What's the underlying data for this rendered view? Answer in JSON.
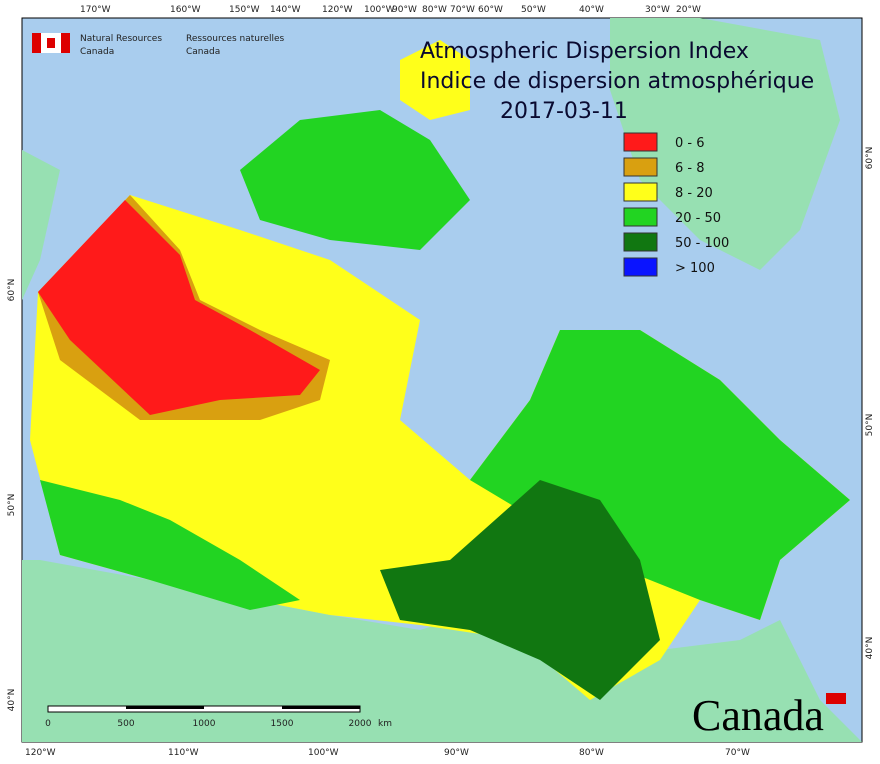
{
  "header": {
    "agency_en": [
      "Natural Resources",
      "Canada"
    ],
    "agency_fr": [
      "Ressources naturelles",
      "Canada"
    ]
  },
  "title": {
    "en": "Atmospheric Dispersion Index",
    "fr": "Indice de dispersion atmosphérique",
    "date": "2017-03-11"
  },
  "legend": [
    {
      "label": "0 - 6",
      "color": "#ff1a1a"
    },
    {
      "label": "6 - 8",
      "color": "#d9a010"
    },
    {
      "label": "8 - 20",
      "color": "#ffff1a"
    },
    {
      "label": "20 - 50",
      "color": "#22d422"
    },
    {
      "label": "50 - 100",
      "color": "#117711"
    },
    {
      "label": "> 100",
      "color": "#0a14ff"
    }
  ],
  "graticule": {
    "top": [
      "170°W",
      "160°W",
      "150°W",
      "140°W",
      "120°W",
      "100°W",
      "90°W",
      "80°W",
      "70°W",
      "60°W",
      "50°W",
      "40°W",
      "30°W",
      "20°W"
    ],
    "bottom": [
      "120°W",
      "110°W",
      "100°W",
      "90°W",
      "80°W",
      "70°W"
    ],
    "left": [
      "60°N",
      "50°N",
      "40°N"
    ],
    "right": [
      "60°N",
      "50°N",
      "40°N"
    ]
  },
  "scale_bar": {
    "labels": [
      "0",
      "500",
      "1000",
      "1500",
      "2000"
    ],
    "unit": "km"
  },
  "wordmark": "Canada"
}
